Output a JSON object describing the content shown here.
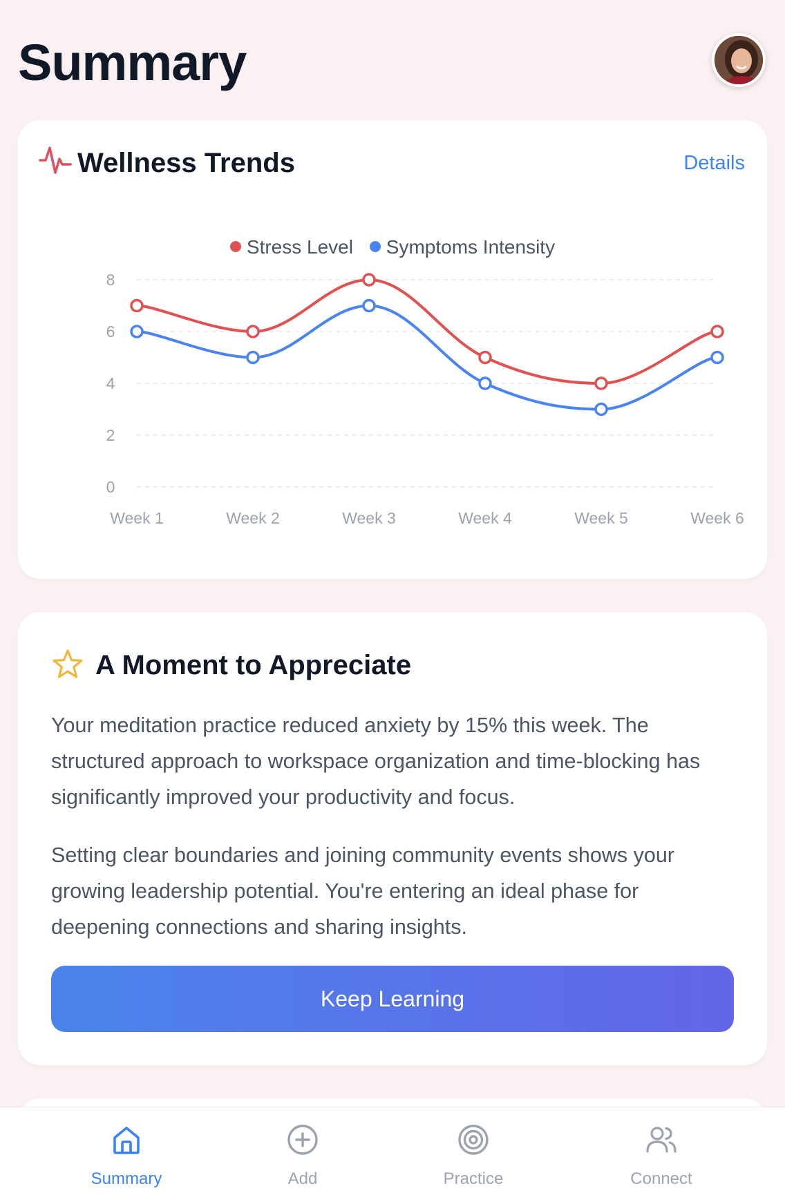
{
  "header": {
    "title": "Summary"
  },
  "wellness": {
    "title": "Wellness Trends",
    "details_label": "Details"
  },
  "chart_data": {
    "type": "line",
    "categories": [
      "Week 1",
      "Week 2",
      "Week 3",
      "Week 4",
      "Week 5",
      "Week 6"
    ],
    "series": [
      {
        "name": "Stress Level",
        "color": "#e05252",
        "values": [
          7,
          6,
          8,
          5,
          4,
          6
        ]
      },
      {
        "name": "Symptoms Intensity",
        "color": "#4a84f0",
        "values": [
          6,
          5,
          7,
          4,
          3,
          5
        ]
      }
    ],
    "ylim": [
      0,
      8
    ],
    "yticks": [
      0,
      2,
      4,
      6,
      8
    ],
    "grid": true,
    "legend": "top-center",
    "curve": "smooth"
  },
  "moment": {
    "title": "A Moment to Appreciate",
    "paragraph_1": "Your meditation practice reduced anxiety by 15% this week. The structured approach to workspace organization and time-blocking has significantly improved your productivity and focus.",
    "paragraph_2": "Setting clear boundaries and joining community events shows your growing leadership potential. You're entering an ideal phase for deepening connections and sharing insights.",
    "button_label": "Keep Learning"
  },
  "tabs": [
    {
      "label": "Summary",
      "icon": "home-icon",
      "active": true
    },
    {
      "label": "Add",
      "icon": "plus-circle-icon",
      "active": false
    },
    {
      "label": "Practice",
      "icon": "target-icon",
      "active": false
    },
    {
      "label": "Connect",
      "icon": "users-icon",
      "active": false
    }
  ],
  "colors": {
    "accent": "#3b82f6",
    "background": "#fbf1f2",
    "stress": "#e05252",
    "symptoms": "#4a84f0",
    "star": "#f0b73a"
  }
}
